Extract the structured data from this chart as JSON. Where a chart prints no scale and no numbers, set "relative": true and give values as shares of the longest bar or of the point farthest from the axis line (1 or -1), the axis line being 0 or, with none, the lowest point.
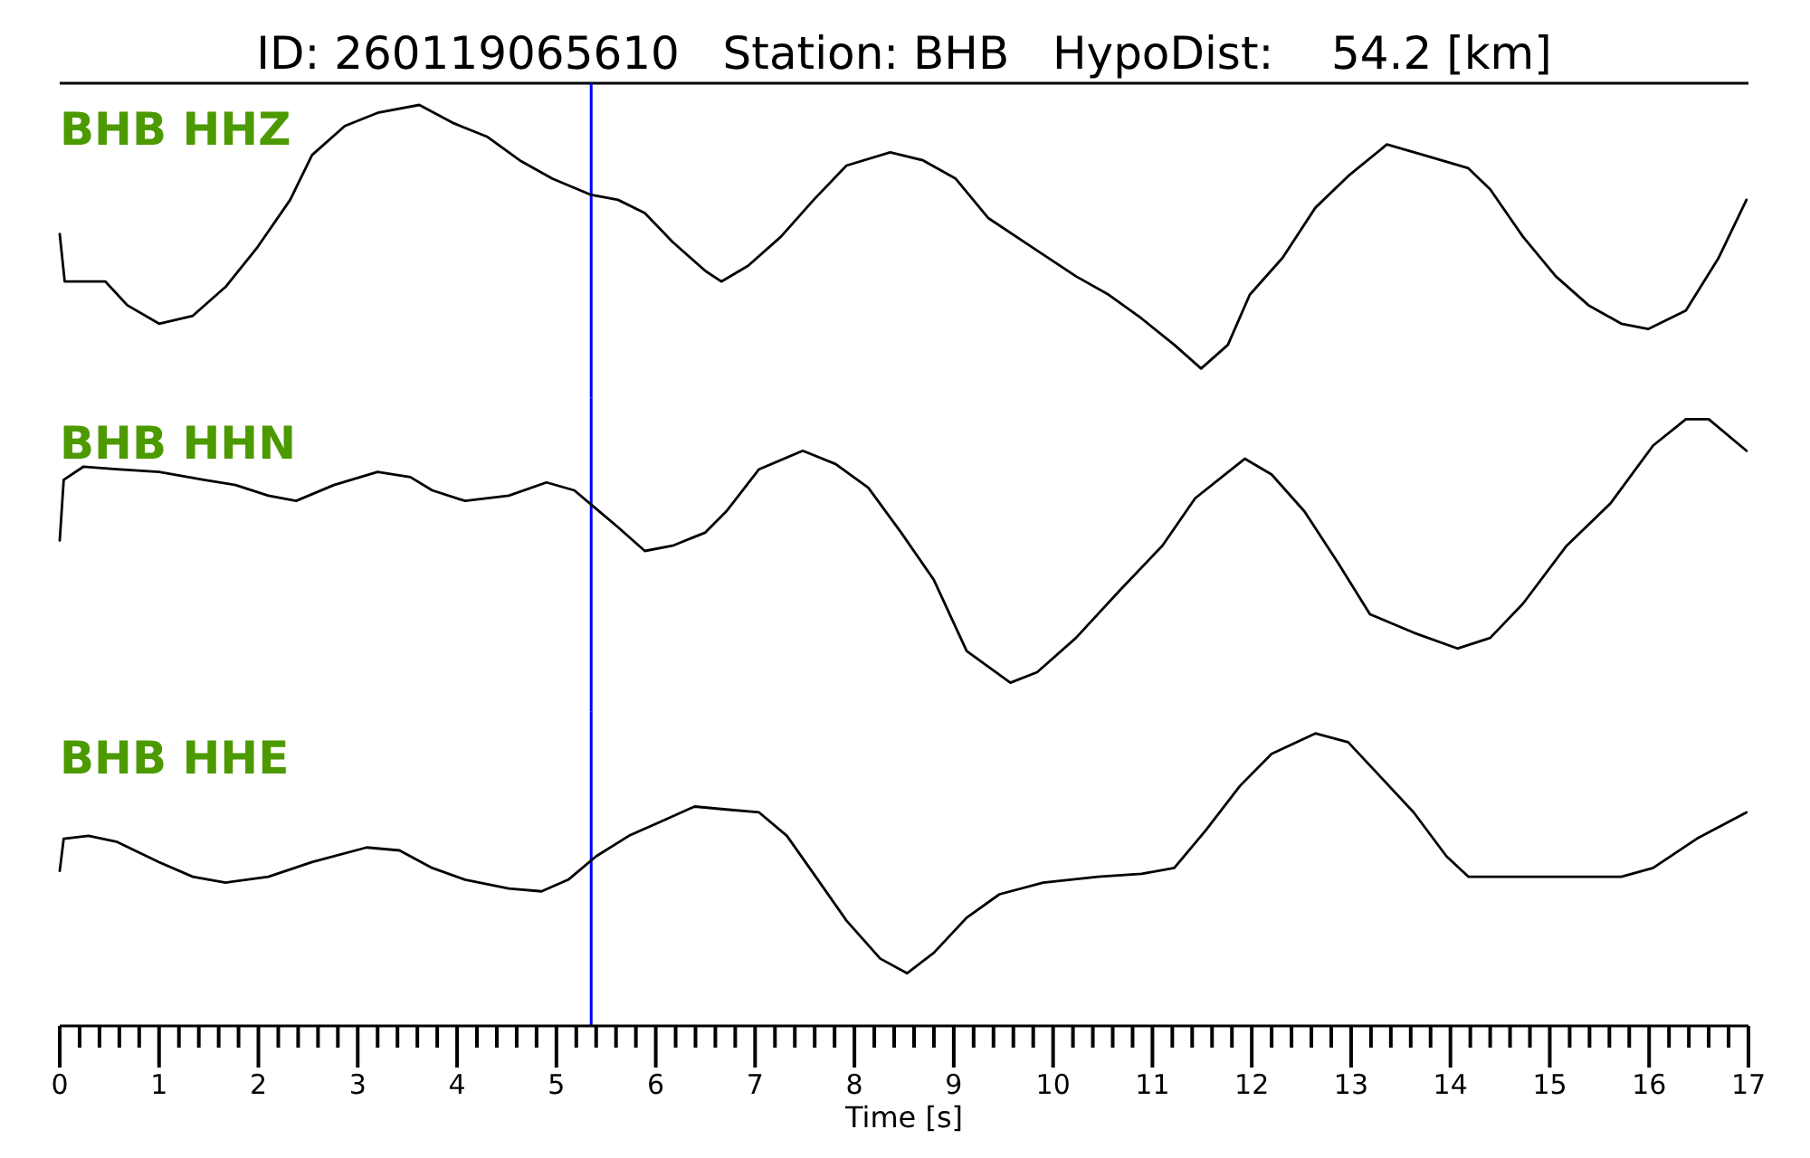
{
  "chart_data": [
    {
      "type": "line",
      "title": "ID: 260119065610   Station: BHB   HypoDist:    54.2 [km]",
      "annotations": [
        "BHB HHZ"
      ],
      "relative": true,
      "xlim": [
        0,
        17
      ],
      "tick_labels": false,
      "color": "#000000",
      "ref_lines": [
        {
          "axis": "x",
          "value": 5.35,
          "color": "#0000ff"
        }
      ],
      "x": [
        0,
        0.05,
        0.46,
        0.68,
        1.0,
        1.34,
        1.67,
        1.99,
        2.32,
        2.54,
        2.87,
        3.2,
        3.62,
        3.97,
        4.3,
        4.63,
        4.96,
        5.34,
        5.62,
        5.89,
        6.17,
        6.5,
        6.66,
        6.93,
        7.26,
        7.59,
        7.92,
        8.36,
        8.69,
        9.02,
        9.35,
        9.79,
        10.23,
        10.56,
        10.89,
        11.22,
        11.49,
        11.76,
        11.98,
        12.31,
        12.64,
        12.97,
        13.36,
        13.73,
        14.18,
        14.4,
        14.73,
        15.06,
        15.39,
        15.72,
        15.99,
        16.37,
        16.7,
        16.98
      ],
      "values": [
        0.51,
        0.33,
        0.33,
        0.24,
        0.17,
        0.2,
        0.31,
        0.46,
        0.64,
        0.81,
        0.92,
        0.97,
        1,
        0.93,
        0.88,
        0.79,
        0.72,
        0.66,
        0.64,
        0.59,
        0.48,
        0.37,
        0.33,
        0.39,
        0.5,
        0.64,
        0.77,
        0.82,
        0.79,
        0.72,
        0.57,
        0.46,
        0.35,
        0.28,
        0.19,
        0.09,
        0,
        0.09,
        0.28,
        0.42,
        0.61,
        0.73,
        0.85,
        0.81,
        0.76,
        0.68,
        0.5,
        0.35,
        0.24,
        0.17,
        0.15,
        0.22,
        0.42,
        0.64
      ]
    },
    {
      "type": "line",
      "annotations": [
        "BHB HHN"
      ],
      "relative": true,
      "xlim": [
        0,
        17
      ],
      "tick_labels": false,
      "color": "#000000",
      "ref_lines": [
        {
          "axis": "x",
          "value": 5.35,
          "color": "#0000ff"
        }
      ],
      "x": [
        0,
        0.04,
        0.24,
        0.57,
        1.0,
        1.45,
        1.77,
        2.1,
        2.38,
        2.76,
        3.2,
        3.53,
        3.75,
        4.08,
        4.52,
        4.9,
        5.18,
        5.4,
        5.62,
        5.89,
        6.17,
        6.5,
        6.71,
        7.04,
        7.48,
        7.81,
        8.14,
        8.47,
        8.8,
        9.13,
        9.57,
        9.84,
        10.23,
        10.67,
        11.1,
        11.43,
        11.93,
        12.2,
        12.53,
        12.86,
        13.19,
        13.63,
        14.07,
        14.4,
        14.73,
        15.17,
        15.61,
        16.04,
        16.37,
        16.6,
        16.98
      ],
      "values": [
        0.54,
        0.77,
        0.82,
        0.81,
        0.8,
        0.77,
        0.75,
        0.71,
        0.69,
        0.75,
        0.8,
        0.78,
        0.73,
        0.69,
        0.71,
        0.76,
        0.73,
        0.66,
        0.59,
        0.5,
        0.52,
        0.57,
        0.65,
        0.81,
        0.88,
        0.83,
        0.74,
        0.57,
        0.39,
        0.12,
        0,
        0.04,
        0.17,
        0.35,
        0.52,
        0.7,
        0.85,
        0.79,
        0.65,
        0.46,
        0.26,
        0.19,
        0.13,
        0.17,
        0.3,
        0.52,
        0.68,
        0.9,
        1,
        1,
        0.88
      ]
    },
    {
      "type": "line",
      "annotations": [
        "BHB HHE"
      ],
      "xlabel": "Time [s]",
      "relative": true,
      "xlim": [
        0,
        17
      ],
      "tick_labels": "x",
      "color": "#000000",
      "ref_lines": [
        {
          "axis": "x",
          "value": 5.35,
          "color": "#0000ff"
        }
      ],
      "xticks": [
        0,
        {
          "value": 0.2,
          "label": null
        },
        {
          "value": 0.4,
          "label": null
        },
        {
          "value": 0.6,
          "label": null
        },
        {
          "value": 0.8,
          "label": null
        },
        1,
        {
          "value": 1.2,
          "label": null
        },
        {
          "value": 1.4,
          "label": null
        },
        {
          "value": 1.6,
          "label": null
        },
        {
          "value": 1.8,
          "label": null
        },
        2,
        {
          "value": 2.2,
          "label": null
        },
        {
          "value": 2.4,
          "label": null
        },
        {
          "value": 2.6,
          "label": null
        },
        {
          "value": 2.8,
          "label": null
        },
        3,
        {
          "value": 3.2,
          "label": null
        },
        {
          "value": 3.4,
          "label": null
        },
        {
          "value": 3.6,
          "label": null
        },
        {
          "value": 3.8,
          "label": null
        },
        4,
        {
          "value": 4.2,
          "label": null
        },
        {
          "value": 4.4,
          "label": null
        },
        {
          "value": 4.6,
          "label": null
        },
        {
          "value": 4.8,
          "label": null
        },
        5,
        {
          "value": 5.2,
          "label": null
        },
        {
          "value": 5.4,
          "label": null
        },
        {
          "value": 5.6,
          "label": null
        },
        {
          "value": 5.8,
          "label": null
        },
        6,
        {
          "value": 6.2,
          "label": null
        },
        {
          "value": 6.4,
          "label": null
        },
        {
          "value": 6.6,
          "label": null
        },
        {
          "value": 6.8,
          "label": null
        },
        7,
        {
          "value": 7.2,
          "label": null
        },
        {
          "value": 7.4,
          "label": null
        },
        {
          "value": 7.6,
          "label": null
        },
        {
          "value": 7.8,
          "label": null
        },
        8,
        {
          "value": 8.2,
          "label": null
        },
        {
          "value": 8.4,
          "label": null
        },
        {
          "value": 8.6,
          "label": null
        },
        {
          "value": 8.8,
          "label": null
        },
        9,
        {
          "value": 9.2,
          "label": null
        },
        {
          "value": 9.4,
          "label": null
        },
        {
          "value": 9.6,
          "label": null
        },
        {
          "value": 9.8,
          "label": null
        },
        10,
        {
          "value": 10.2,
          "label": null
        },
        {
          "value": 10.4,
          "label": null
        },
        {
          "value": 10.6,
          "label": null
        },
        {
          "value": 10.8,
          "label": null
        },
        11,
        {
          "value": 11.2,
          "label": null
        },
        {
          "value": 11.4,
          "label": null
        },
        {
          "value": 11.6,
          "label": null
        },
        {
          "value": 11.8,
          "label": null
        },
        12,
        {
          "value": 12.2,
          "label": null
        },
        {
          "value": 12.4,
          "label": null
        },
        {
          "value": 12.6,
          "label": null
        },
        {
          "value": 12.8,
          "label": null
        },
        13,
        {
          "value": 13.2,
          "label": null
        },
        {
          "value": 13.4,
          "label": null
        },
        {
          "value": 13.6,
          "label": null
        },
        {
          "value": 13.8,
          "label": null
        },
        14,
        {
          "value": 14.2,
          "label": null
        },
        {
          "value": 14.4,
          "label": null
        },
        {
          "value": 14.6,
          "label": null
        },
        {
          "value": 14.8,
          "label": null
        },
        15,
        {
          "value": 15.2,
          "label": null
        },
        {
          "value": 15.4,
          "label": null
        },
        {
          "value": 15.6,
          "label": null
        },
        {
          "value": 15.8,
          "label": null
        },
        16,
        {
          "value": 16.2,
          "label": null
        },
        {
          "value": 16.4,
          "label": null
        },
        {
          "value": 16.6,
          "label": null
        },
        {
          "value": 16.8,
          "label": null
        },
        17
      ],
      "x": [
        0,
        0.04,
        0.29,
        0.57,
        1.0,
        1.34,
        1.67,
        2.1,
        2.54,
        3.09,
        3.42,
        3.75,
        4.08,
        4.52,
        4.85,
        5.12,
        5.4,
        5.73,
        6.06,
        6.39,
        6.71,
        7.04,
        7.32,
        7.59,
        7.92,
        8.26,
        8.53,
        8.8,
        9.13,
        9.46,
        9.9,
        10.45,
        10.89,
        11.22,
        11.54,
        11.88,
        12.2,
        12.64,
        12.97,
        13.3,
        13.63,
        13.96,
        14.18,
        14.73,
        15.27,
        15.72,
        16.04,
        16.48,
        16.98
      ],
      "values": [
        0.53,
        0.64,
        0.65,
        0.63,
        0.56,
        0.51,
        0.49,
        0.51,
        0.56,
        0.61,
        0.6,
        0.54,
        0.5,
        0.47,
        0.46,
        0.5,
        0.58,
        0.65,
        0.7,
        0.75,
        0.74,
        0.73,
        0.65,
        0.52,
        0.36,
        0.23,
        0.18,
        0.25,
        0.37,
        0.45,
        0.49,
        0.51,
        0.52,
        0.54,
        0.67,
        0.82,
        0.93,
        1,
        0.97,
        0.85,
        0.73,
        0.58,
        0.51,
        0.51,
        0.51,
        0.51,
        0.54,
        0.64,
        0.73
      ]
    }
  ]
}
